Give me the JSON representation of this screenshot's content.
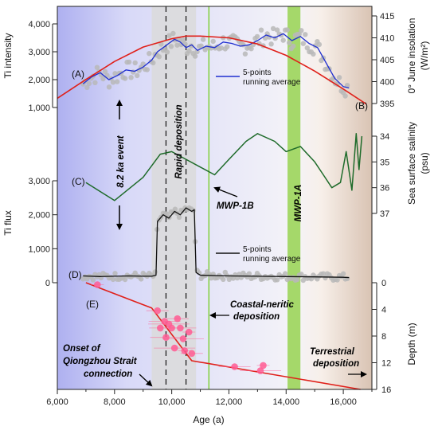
{
  "colors": {
    "ti_intensity": "#1f2fd0",
    "insolation": "#e0201a",
    "salinity": "#1e6b2a",
    "ti_flux": "#111111",
    "depth_points": "#ff5c93",
    "depth_line": "#e0201a",
    "raw_points": "#b9b9b9",
    "mwp1a_band": "#a5d86a",
    "mwp1b_line": "#7fd03a",
    "rapid_band": "#dadada"
  },
  "axes": {
    "x_label": "Age (a)",
    "x_ticks": [
      "6,000",
      "8,000",
      "10,000",
      "12,000",
      "14,000",
      "16,000"
    ],
    "ti_intensity_label": "Ti intensity",
    "ti_intensity_ticks": [
      "1,000",
      "2,000",
      "3,000",
      "4,000"
    ],
    "insolation_label": "0° June insolation",
    "insolation_unit": "(W/m²)",
    "insolation_ticks": [
      "395",
      "400",
      "405",
      "410",
      "415"
    ],
    "salinity_label": "Sea surface salinity",
    "salinity_unit": "(psu)",
    "salinity_ticks": [
      "34",
      "35",
      "36",
      "37"
    ],
    "ti_flux_label": "Ti flux",
    "ti_flux_ticks": [
      "0",
      "1,000",
      "2,000",
      "3,000"
    ],
    "depth_label": "Depth (m)",
    "depth_ticks": [
      "0",
      "4",
      "8",
      "12",
      "16"
    ]
  },
  "labels": {
    "panel_a": "(A)",
    "panel_b": "(B)",
    "panel_c": "(C)",
    "panel_d": "(D)",
    "panel_e": "(E)",
    "legend_a_line1": "5-points",
    "legend_a_line2": "running average",
    "legend_d_line1": "5-points",
    "legend_d_line2": "running average",
    "event_82": "8.2 ka event",
    "rapid_deposition": "Rapid deposition",
    "mwp1b": "MWP-1B",
    "mwp1a": "MWP-1A",
    "coastal_line1": "Coastal-neritic",
    "coastal_line2": "deposition",
    "onset_line1": "Onset of",
    "onset_line2": "Qiongzhou Strait",
    "onset_line3": "connection",
    "terrestrial_line1": "Terrestrial",
    "terrestrial_line2": "deposition"
  },
  "chart_data": [
    {
      "type": "line",
      "panel": "(A)",
      "ylabel": "Ti intensity",
      "ylim": [
        1000,
        4000
      ],
      "series": [
        {
          "name": "5-points running average",
          "x": [
            6900,
            7200,
            7500,
            7800,
            8100,
            8400,
            8700,
            9000,
            9300,
            9500,
            9700,
            9900,
            10100,
            10300,
            10500,
            10700,
            10900,
            11200,
            11500,
            11800,
            12100,
            12400,
            12700,
            13000,
            13300,
            13600,
            13900,
            14200,
            14500,
            14800,
            15100,
            15400,
            15700,
            16000,
            16200
          ],
          "values": [
            1850,
            2100,
            2250,
            2000,
            2150,
            2350,
            2300,
            2450,
            2700,
            3000,
            3150,
            3300,
            3450,
            3350,
            3150,
            3250,
            3050,
            3200,
            3150,
            3350,
            3300,
            3200,
            3250,
            3400,
            3600,
            3500,
            3650,
            3400,
            3550,
            3300,
            3150,
            2600,
            2050,
            1750,
            1700
          ]
        }
      ]
    },
    {
      "type": "line",
      "panel": "(B)",
      "ylabel": "0° June insolation (W/m²)",
      "ylim": [
        395,
        415
      ],
      "series": [
        {
          "name": "insolation",
          "x": [
            6000,
            7000,
            8000,
            9000,
            10000,
            10500,
            11000,
            12000,
            13000,
            14000,
            15000,
            16000,
            16800
          ],
          "values": [
            396.2,
            400.5,
            404.6,
            407.9,
            409.8,
            410.4,
            410.4,
            410.0,
            408.6,
            406.0,
            402.4,
            398.3,
            394.9
          ]
        }
      ]
    },
    {
      "type": "line",
      "panel": "(C)",
      "ylabel": "Sea surface salinity (psu)",
      "ylim": [
        37,
        33.8
      ],
      "series": [
        {
          "name": "salinity",
          "x": [
            7000,
            8000,
            9000,
            9600,
            10000,
            10500,
            11000,
            11500,
            12000,
            12600,
            13000,
            13600,
            14000,
            14500,
            15000,
            15300,
            15600,
            15900,
            16100,
            16300,
            16450,
            16550,
            16650
          ],
          "values": [
            35.8,
            36.5,
            35.6,
            34.7,
            34.6,
            34.9,
            35.2,
            35.5,
            34.9,
            34.2,
            33.9,
            34.2,
            34.6,
            34.4,
            35.0,
            35.5,
            36.0,
            35.8,
            34.6,
            36.1,
            33.9,
            35.3,
            34.0
          ]
        }
      ]
    },
    {
      "type": "line",
      "panel": "(D)",
      "ylabel": "Ti flux",
      "ylim": [
        0,
        3000
      ],
      "series": [
        {
          "name": "5-points running average",
          "x": [
            6900,
            7500,
            8000,
            8500,
            9000,
            9300,
            9450,
            9500,
            9700,
            9900,
            10100,
            10300,
            10500,
            10700,
            10790,
            10850,
            11000,
            12000,
            13000,
            14000,
            15000,
            16000,
            16200
          ],
          "values": [
            200,
            180,
            190,
            200,
            190,
            190,
            220,
            1800,
            2000,
            1900,
            2100,
            2000,
            2200,
            2100,
            2150,
            300,
            220,
            200,
            190,
            180,
            170,
            160,
            150
          ]
        }
      ]
    },
    {
      "type": "scatter",
      "panel": "(E)",
      "ylabel": "Depth (m)",
      "ylim": [
        16,
        0
      ],
      "series": [
        {
          "name": "depth samples",
          "x": [
            7400,
            9500,
            9750,
            9900,
            10000,
            10200,
            10300,
            10400,
            10600,
            9600,
            9800,
            10100,
            10450,
            10700,
            12200,
            13100,
            13200
          ],
          "values": [
            0.3,
            4.2,
            5.8,
            6.2,
            6.8,
            5.4,
            6.8,
            8.4,
            7.4,
            6.8,
            8.2,
            9.8,
            10.2,
            10.6,
            12.6,
            13.2,
            12.4
          ]
        },
        {
          "name": "depth trend",
          "x": [
            7000,
            9300,
            10700,
            16600
          ],
          "values": [
            0,
            3.8,
            11.7,
            16.0
          ]
        }
      ]
    }
  ]
}
